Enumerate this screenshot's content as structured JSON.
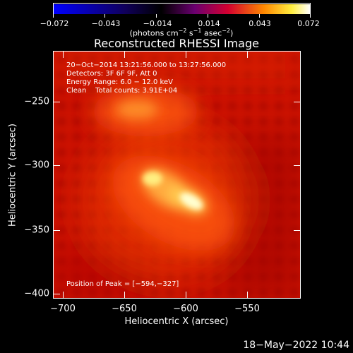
{
  "colorbar": {
    "ticks": [
      "−0.072",
      "−0.043",
      "−0.014",
      "0.014",
      "0.043",
      "0.072"
    ],
    "unit_text": "(photons cm",
    "unit_exp1": "−2",
    "unit_mid1": " s",
    "unit_exp2": "−1",
    "unit_mid2": " asec",
    "unit_exp3": "−2",
    "unit_end": ")"
  },
  "title": "Reconstructed RHESSI Image",
  "info": {
    "line1": "20−Oct−2014 13:21:56.000 to 13:27:56.000",
    "line2": "Detectors: 3F 6F 9F, Att 0",
    "line3": "Energy Range: 6.0 − 12.0 keV",
    "line4": "Clean    Total counts: 3.91E+04",
    "peak": "Position of Peak = [−594,−327]"
  },
  "axes": {
    "xlabel": "Heliocentric X (arcsec)",
    "ylabel": "Heliocentric Y (arcsec)",
    "xticks": [
      "−700",
      "−650",
      "−600",
      "−550"
    ],
    "yticks": [
      "−250",
      "−300",
      "−350",
      "−400"
    ]
  },
  "timestamp": "18−May−2022 10:44"
}
